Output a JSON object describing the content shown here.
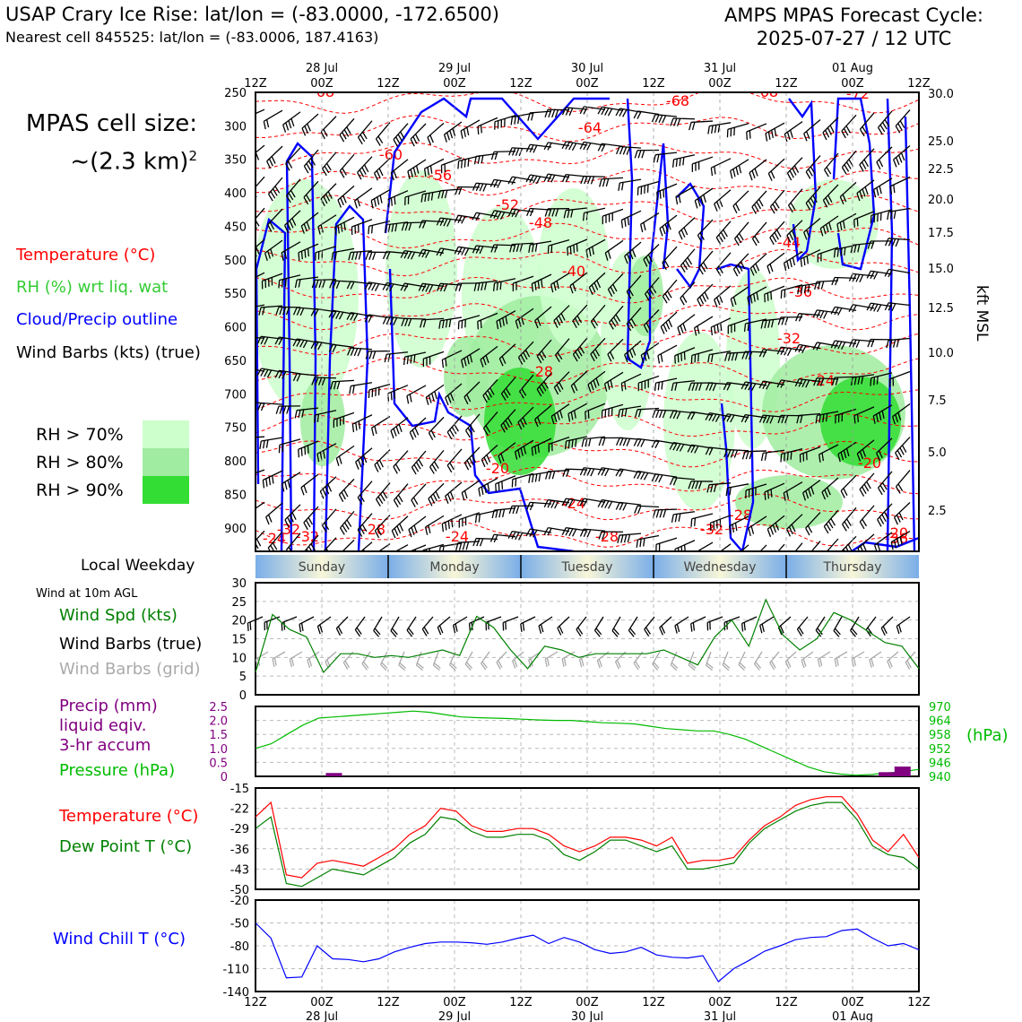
{
  "header": {
    "title_left": "USAP Crary Ice Rise: lat/lon = (-83.0000, -172.6500)",
    "subtitle_left": "Nearest cell 845525: lat/lon = (-83.0006, 187.4163)",
    "title_right_1": "AMPS MPAS Forecast Cycle:",
    "title_right_2": "2025-07-27 / 12 UTC"
  },
  "sidebar": {
    "cell_size_1": "MPAS cell size:",
    "cell_size_2": "~(2.3 km)",
    "cell_size_exp": "2",
    "legend": {
      "temperature": "Temperature (°C)",
      "rh": "RH (%) wrt liq. wat",
      "cloud": "Cloud/Precip outline",
      "wind": "Wind Barbs (kts) (true)"
    },
    "rh_levels": [
      "RH > 70%",
      "RH > 80%",
      "RH > 90%"
    ],
    "local_weekday": "Local Weekday",
    "wind_10m": "Wind at 10m AGL",
    "wind_legend": [
      "Wind Spd (kts)",
      "Wind Barbs (true)",
      "Wind Barbs (grid)"
    ],
    "precip_legend": [
      "Precip (mm)",
      "liquid eqiv.",
      "3-hr accum",
      "Pressure (hPa)"
    ],
    "temp_legend": [
      "Temperature (°C)",
      "Dew Point T (°C)"
    ],
    "chill_legend": "Wind Chill T (°C)"
  },
  "colors": {
    "temperature": "#ff0000",
    "rh": "#33cc33",
    "cloud": "#0000ff",
    "wind": "#000000",
    "wind_grid": "#aaaaaa",
    "windspd": "#008000",
    "precip": "#800080",
    "pressure": "#00bb00",
    "dewpoint": "#008000",
    "chill": "#0000ff",
    "rh70": "#ccffcc",
    "rh80": "#a0eca0",
    "rh90": "#33dd33"
  },
  "time_axis": {
    "ticks": [
      "12Z",
      "00Z",
      "12Z",
      "00Z",
      "12Z",
      "00Z",
      "12Z",
      "00Z",
      "12Z",
      "00Z",
      "12Z"
    ],
    "dates": [
      "28 Jul",
      "29 Jul",
      "30 Jul",
      "31 Jul",
      "01 Aug"
    ],
    "weekdays": [
      "Sunday",
      "Monday",
      "Tuesday",
      "Wednesday",
      "Thursday"
    ]
  },
  "chart_data": [
    {
      "type": "heatmap",
      "name": "time-height cross section",
      "y_left_ticks": [
        250,
        300,
        350,
        400,
        450,
        500,
        550,
        600,
        650,
        700,
        750,
        800,
        850,
        900
      ],
      "y_right_ticks": [
        "30.0",
        "25.0",
        "22.5",
        "20.0",
        "17.5",
        "15.0",
        "12.5",
        "10.0",
        "7.5",
        "5.0",
        "2.5"
      ],
      "ylabel_right": "kft MSL",
      "temp_labels": [
        "-68",
        "-68",
        "-68",
        "-72",
        "-64",
        "-60",
        "-56",
        "-52",
        "-48",
        "-44",
        "-40",
        "-36",
        "-32",
        "-28",
        "-24",
        "-20",
        "-20",
        "-24",
        "-28",
        "-32",
        "-32",
        "-28",
        "-28",
        "-24",
        "-24",
        "-20",
        "-32",
        "-36"
      ],
      "ylim": [
        250,
        935
      ]
    },
    {
      "type": "line",
      "name": "10m wind speed",
      "y_ticks": [
        "30",
        "25",
        "20",
        "15",
        "10",
        "5",
        "0"
      ],
      "ylim": [
        0,
        30
      ],
      "values": [
        6,
        21.5,
        17.5,
        15.5,
        6,
        11,
        11,
        10,
        10.5,
        10,
        11,
        12,
        10.5,
        21,
        18,
        12,
        7,
        13,
        12,
        10,
        11,
        11,
        11,
        11,
        12,
        10,
        8,
        15.5,
        20,
        13,
        25.5,
        16,
        12,
        15,
        22,
        20,
        17,
        14,
        13,
        7
      ]
    },
    {
      "type": "line",
      "name": "precip and pressure",
      "y_left_ticks": [
        "2.5",
        "2.0",
        "1.5",
        "1.0",
        "0.5",
        "0"
      ],
      "y_right_ticks": [
        "970",
        "964",
        "958",
        "952",
        "946",
        "940"
      ],
      "ylabel_right": "(hPa)",
      "ylim_left": [
        0,
        2.5
      ],
      "ylim_right": [
        940,
        970
      ],
      "pressure": [
        952,
        954,
        958,
        962,
        965,
        965.5,
        966,
        966.5,
        967,
        967.5,
        968,
        967.5,
        966.5,
        965.5,
        965.2,
        965,
        964.8,
        964.5,
        964.2,
        964,
        964,
        963.5,
        963,
        962.8,
        962.5,
        961.5,
        960.5,
        960,
        959.5,
        959.5,
        958,
        956,
        953,
        950,
        947,
        944,
        942,
        941,
        940.5,
        940.8,
        941.5,
        942,
        943
      ],
      "precip_bars": [
        {
          "x": 4,
          "value": 0.12
        },
        {
          "x": 39,
          "value": 0.15
        },
        {
          "x": 40,
          "value": 0.35
        }
      ]
    },
    {
      "type": "line",
      "name": "temperature and dew point",
      "y_ticks": [
        "-15",
        "-22",
        "-29",
        "-36",
        "-43",
        "-50"
      ],
      "ylim": [
        -50,
        -15
      ],
      "series": [
        {
          "name": "Temperature (°C)",
          "values": [
            -25,
            -20,
            -45,
            -46,
            -41,
            -40,
            -41,
            -42,
            -39,
            -36,
            -31,
            -28,
            -22,
            -23,
            -28,
            -30,
            -30,
            -29,
            -29,
            -31,
            -35,
            -37,
            -35,
            -32,
            -32,
            -33,
            -35,
            -32,
            -41,
            -40,
            -40,
            -39,
            -33,
            -28,
            -25,
            -21,
            -19,
            -18,
            -18,
            -24,
            -33,
            -37,
            -31,
            -39
          ]
        },
        {
          "name": "Dew Point T (°C)",
          "values": [
            -29,
            -25,
            -48,
            -49,
            -46,
            -43,
            -44,
            -45,
            -42,
            -39,
            -34,
            -31,
            -25,
            -26,
            -30,
            -32,
            -32,
            -31,
            -31,
            -33,
            -38,
            -40,
            -37,
            -33,
            -33,
            -35,
            -37,
            -35,
            -43,
            -43,
            -42,
            -41,
            -34,
            -29,
            -26,
            -23,
            -21,
            -20,
            -20,
            -26,
            -35,
            -38,
            -39,
            -43
          ]
        }
      ]
    },
    {
      "type": "line",
      "name": "wind chill",
      "y_ticks": [
        "-20",
        "-50",
        "-80",
        "-110",
        "-140"
      ],
      "ylim": [
        -140,
        -20
      ],
      "values": [
        -50,
        -70,
        -122,
        -121,
        -80,
        -97,
        -98,
        -101,
        -97,
        -88,
        -82,
        -77,
        -75,
        -75,
        -76,
        -78,
        -75,
        -70,
        -66,
        -77,
        -69,
        -75,
        -85,
        -90,
        -88,
        -82,
        -92,
        -95,
        -96,
        -93,
        -127,
        -110,
        -99,
        -87,
        -80,
        -72,
        -69,
        -68,
        -60,
        -58,
        -70,
        -80,
        -77,
        -85
      ]
    }
  ]
}
